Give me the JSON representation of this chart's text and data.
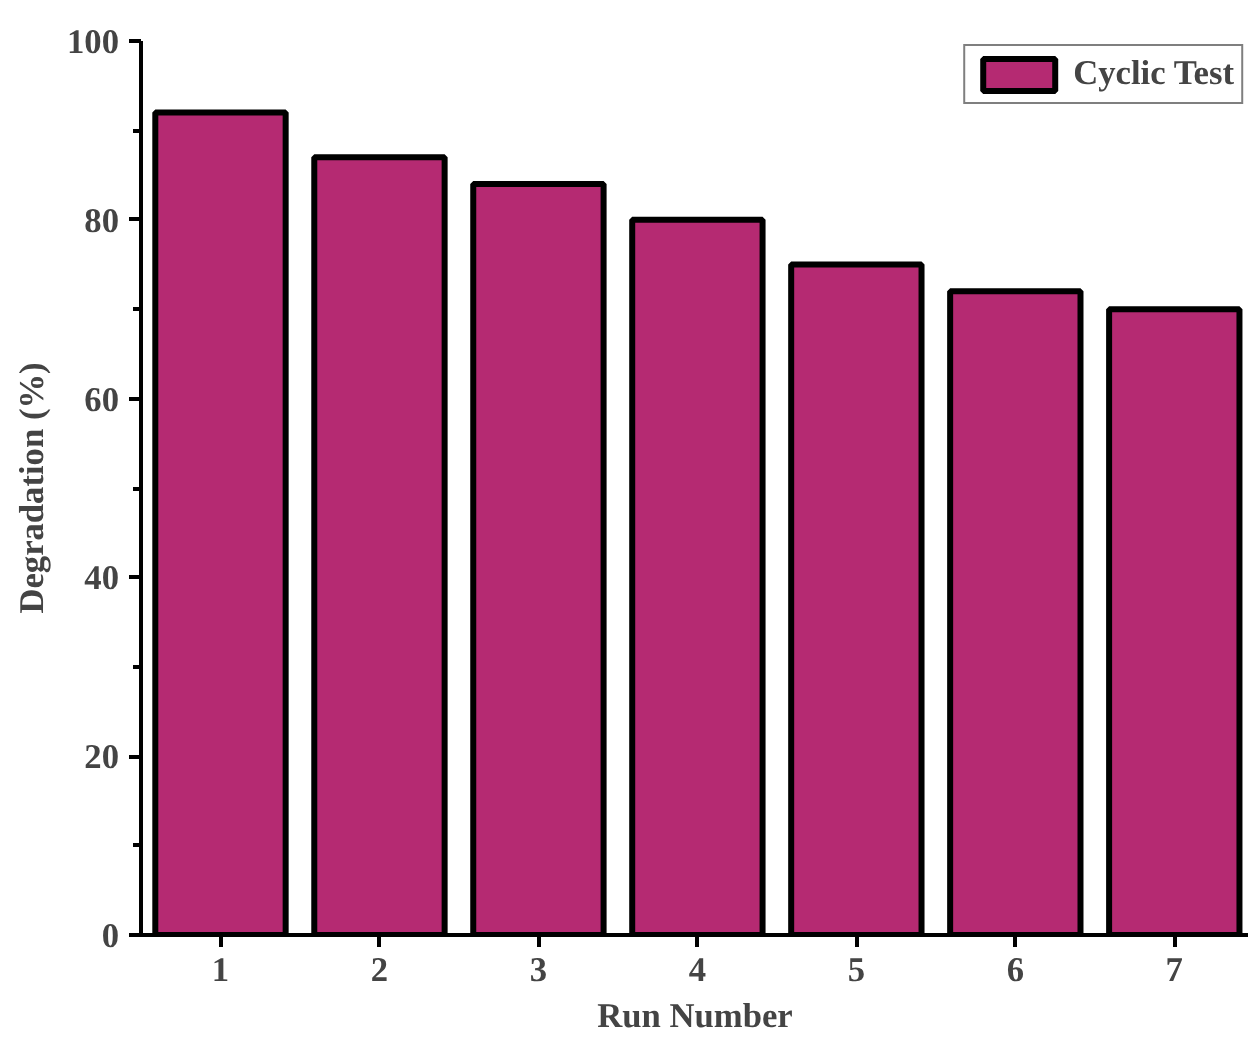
{
  "chart_data": {
    "type": "bar",
    "xlabel": "Run Number",
    "ylabel": "Degradation (%)",
    "categories": [
      "1",
      "2",
      "3",
      "4",
      "5",
      "6",
      "7"
    ],
    "series": [
      {
        "name": "Cyclic Test",
        "color": "#b52a72",
        "values": [
          92,
          87,
          84,
          80,
          75,
          72,
          70
        ]
      }
    ],
    "ylim": [
      0,
      100
    ],
    "yticks": [
      0,
      20,
      40,
      60,
      80,
      100
    ],
    "grid": false,
    "legend": "top right"
  }
}
